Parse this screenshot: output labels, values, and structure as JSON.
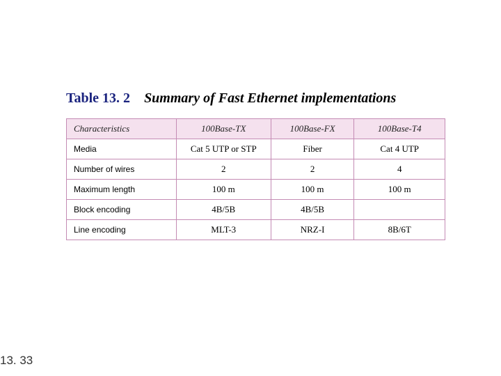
{
  "title": {
    "label": "Table 13. 2",
    "caption": "Summary of Fast Ethernet implementations"
  },
  "table": {
    "columns": [
      "Characteristics",
      "100Base-TX",
      "100Base-FX",
      "100Base-T4"
    ],
    "rows": [
      {
        "label": "Media",
        "cells": [
          "Cat 5 UTP or STP",
          "Fiber",
          "Cat 4 UTP"
        ]
      },
      {
        "label": "Number of wires",
        "cells": [
          "2",
          "2",
          "4"
        ]
      },
      {
        "label": "Maximum length",
        "cells": [
          "100 m",
          "100 m",
          "100 m"
        ]
      },
      {
        "label": "Block encoding",
        "cells": [
          "4B/5B",
          "4B/5B",
          ""
        ]
      },
      {
        "label": "Line encoding",
        "cells": [
          "MLT-3",
          "NRZ-I",
          "8B/6T"
        ]
      }
    ],
    "header_bg": "#f5e1ee",
    "border_color": "#c48bb4",
    "label_font": "Arial",
    "value_font": "Times New Roman"
  },
  "page_number": "13. 33"
}
